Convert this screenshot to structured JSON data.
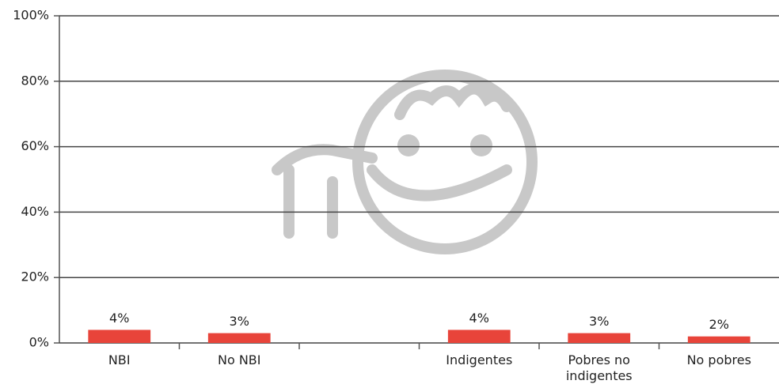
{
  "chart_data": {
    "type": "bar",
    "categories": [
      "NBI",
      "No NBI",
      null,
      "Indigentes",
      "Pobres no indigentes",
      "No pobres"
    ],
    "values": [
      4,
      3,
      null,
      4,
      3,
      2
    ],
    "value_labels": [
      "4%",
      "3%",
      null,
      "4%",
      "3%",
      "2%"
    ],
    "color": "#e8443a",
    "ylim": [
      0,
      100
    ],
    "yticks": [
      {
        "value": 0,
        "label": "0%"
      },
      {
        "value": 20,
        "label": "20%"
      },
      {
        "value": 40,
        "label": "40%"
      },
      {
        "value": 60,
        "label": "60%"
      },
      {
        "value": 80,
        "label": "80%"
      },
      {
        "value": 100,
        "label": "100%"
      }
    ],
    "grid": true
  }
}
